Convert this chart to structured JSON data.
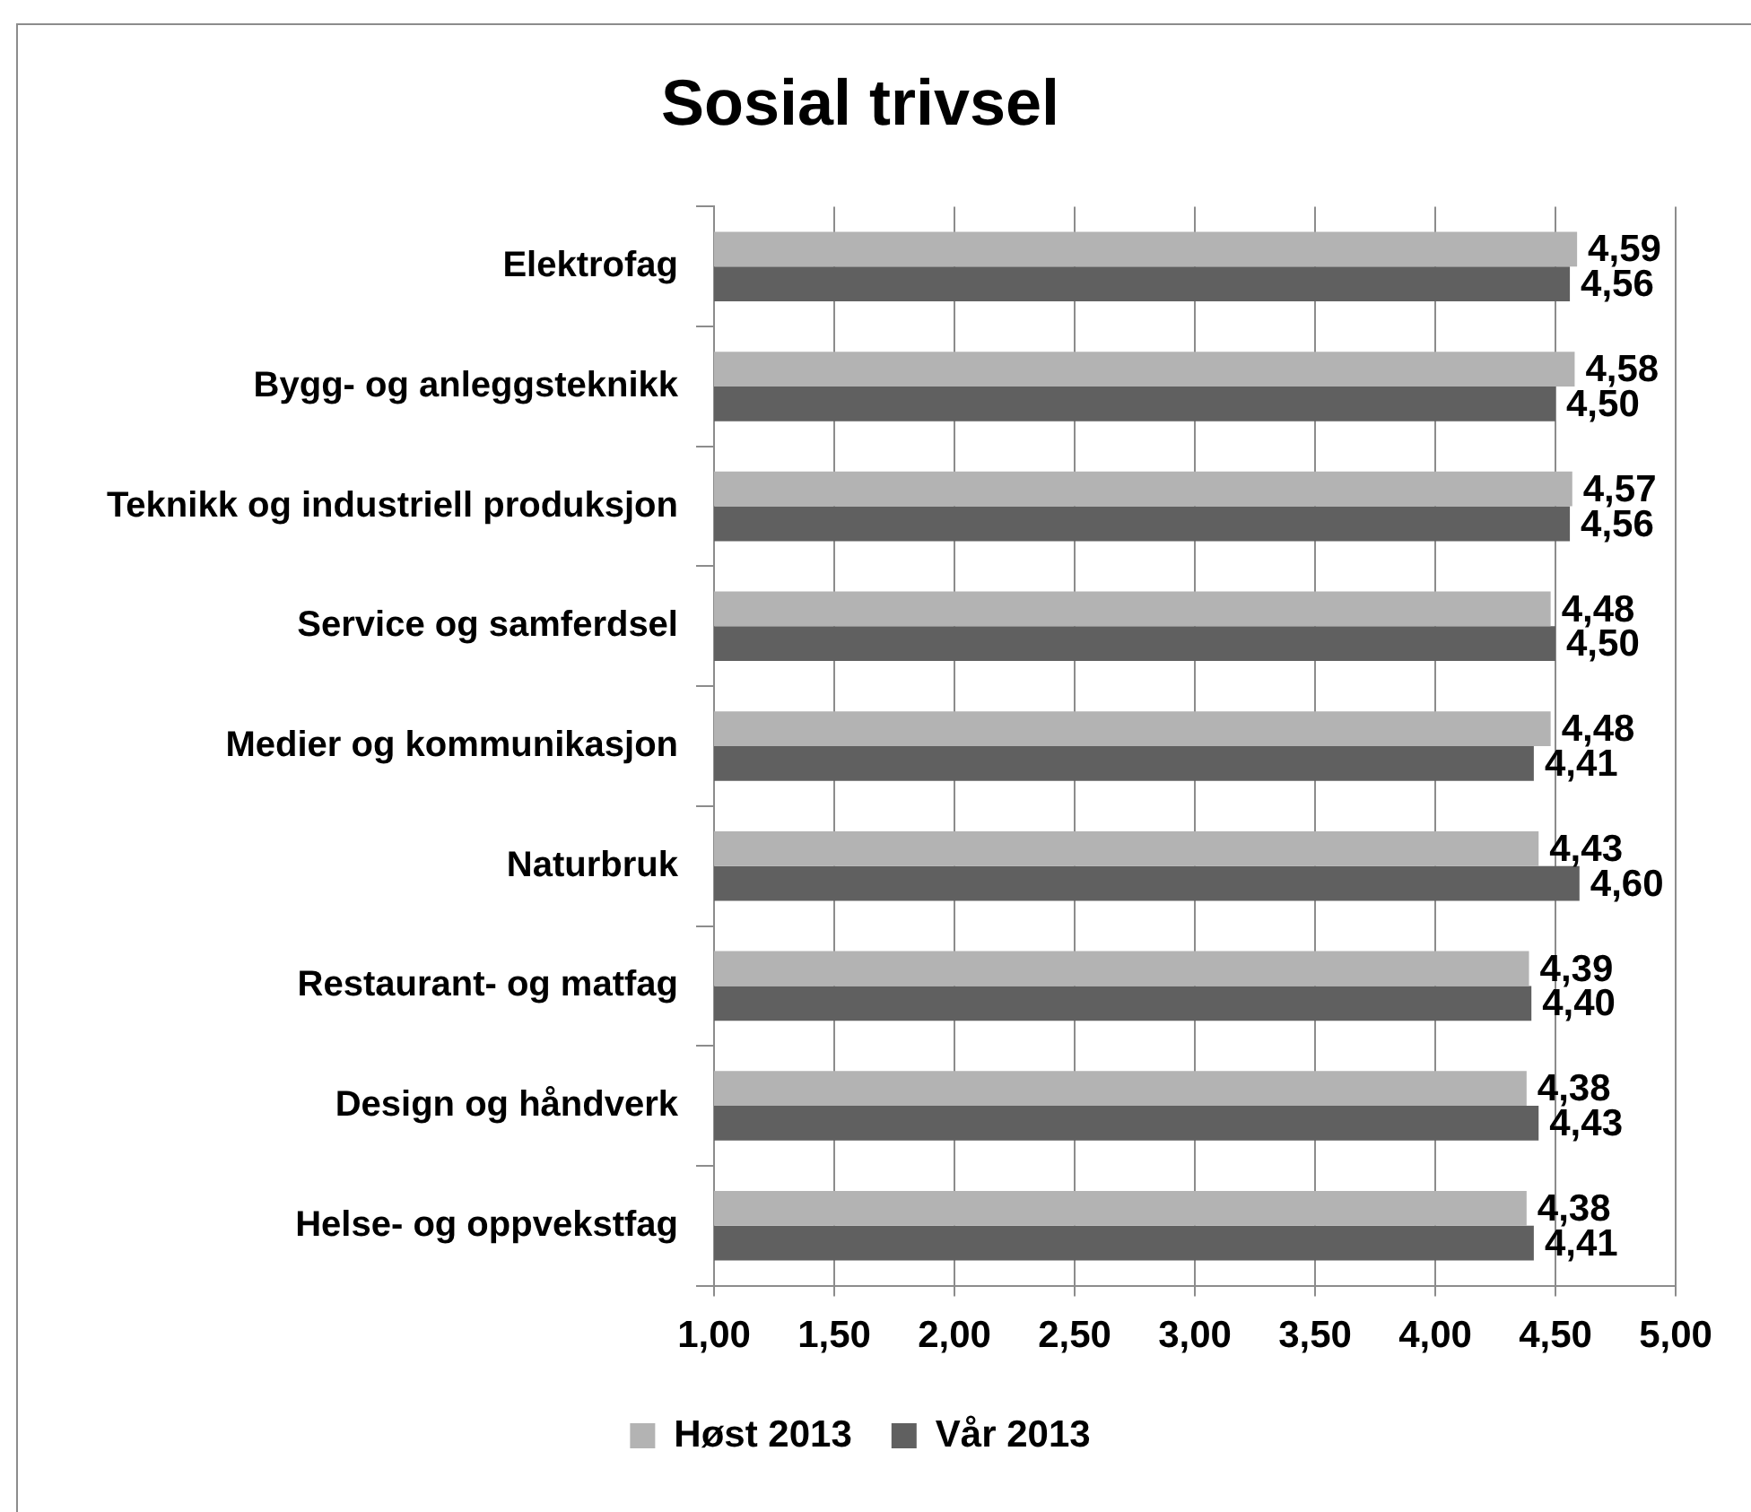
{
  "chart_data": {
    "type": "bar",
    "orientation": "horizontal",
    "title": "Sosial trivsel",
    "categories": [
      "Elektrofag",
      "Bygg- og anleggsteknikk",
      "Teknikk og industriell produksjon",
      "Service og samferdsel",
      "Medier og kommunikasjon",
      "Naturbruk",
      "Restaurant- og matfag",
      "Design og håndverk",
      "Helse- og oppvekstfag"
    ],
    "series": [
      {
        "name": "Høst 2013",
        "color": "#b3b3b3",
        "values": [
          4.59,
          4.58,
          4.57,
          4.48,
          4.48,
          4.43,
          4.39,
          4.38,
          4.38
        ],
        "value_labels": [
          "4,59",
          "4,58",
          "4,57",
          "4,48",
          "4,48",
          "4,43",
          "4,39",
          "4,38",
          "4,38"
        ]
      },
      {
        "name": "Vår 2013",
        "color": "#606060",
        "values": [
          4.56,
          4.5,
          4.56,
          4.5,
          4.41,
          4.6,
          4.4,
          4.43,
          4.41
        ],
        "value_labels": [
          "4,56",
          "4,50",
          "4,56",
          "4,50",
          "4,41",
          "4,60",
          "4,40",
          "4,43",
          "4,41"
        ]
      }
    ],
    "xlim": [
      1,
      5
    ],
    "xticks": [
      {
        "value": 1,
        "label": "1,00"
      },
      {
        "value": 1.5,
        "label": "1,50"
      },
      {
        "value": 2,
        "label": "2,00"
      },
      {
        "value": 2.5,
        "label": "2,50"
      },
      {
        "value": 3,
        "label": "3,00"
      },
      {
        "value": 3.5,
        "label": "3,50"
      },
      {
        "value": 4,
        "label": "4,00"
      },
      {
        "value": 4.5,
        "label": "4,50"
      },
      {
        "value": 5,
        "label": "5,00"
      }
    ],
    "grid": "x",
    "legend": "bottom"
  }
}
